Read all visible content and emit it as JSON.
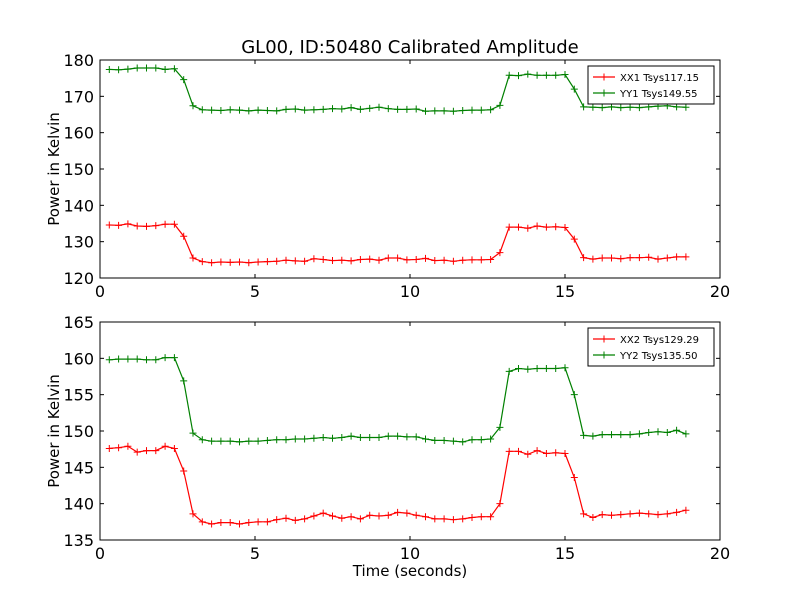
{
  "title": "GL00, ID:50480 Calibrated Amplitude",
  "colors": {
    "xx": "#ff0000",
    "yy": "#008000",
    "axis": "#000000"
  },
  "chart_data": [
    {
      "type": "line",
      "xlabel": "",
      "ylabel": "Power in Kelvin",
      "xlim": [
        0,
        20
      ],
      "ylim": [
        120,
        180
      ],
      "xticks": [
        0,
        5,
        10,
        15,
        20
      ],
      "yticks": [
        120,
        130,
        140,
        150,
        160,
        170,
        180
      ],
      "grid": false,
      "legend_position": "top-right",
      "x": [
        0.3,
        0.6,
        0.9,
        1.2,
        1.5,
        1.8,
        2.1,
        2.4,
        2.7,
        3.0,
        3.3,
        3.6,
        3.9,
        4.2,
        4.5,
        4.8,
        5.1,
        5.4,
        5.7,
        6.0,
        6.3,
        6.6,
        6.9,
        7.2,
        7.5,
        7.8,
        8.1,
        8.4,
        8.7,
        9.0,
        9.3,
        9.6,
        9.9,
        10.2,
        10.5,
        10.8,
        11.1,
        11.4,
        11.7,
        12.0,
        12.3,
        12.6,
        12.9,
        13.2,
        13.5,
        13.8,
        14.1,
        14.4,
        14.7,
        15.0,
        15.3,
        15.6,
        15.9,
        16.2,
        16.5,
        16.8,
        17.1,
        17.4,
        17.7,
        18.0,
        18.3,
        18.6,
        18.9
      ],
      "series": [
        {
          "name": "XX1 Tsys117.15",
          "color": "#ff0000",
          "values": [
            134.6,
            134.5,
            134.9,
            134.3,
            134.2,
            134.4,
            134.8,
            134.8,
            131.5,
            125.5,
            124.5,
            124.2,
            124.4,
            124.3,
            124.4,
            124.2,
            124.4,
            124.5,
            124.6,
            124.9,
            124.7,
            124.6,
            125.3,
            125.1,
            124.8,
            124.9,
            124.7,
            125.1,
            125.2,
            124.9,
            125.5,
            125.5,
            125.0,
            125.1,
            125.4,
            124.8,
            124.9,
            124.6,
            124.9,
            125.0,
            125.0,
            125.1,
            127.0,
            134.0,
            134.0,
            133.7,
            134.3,
            134.0,
            134.1,
            133.9,
            130.7,
            125.6,
            125.2,
            125.5,
            125.5,
            125.3,
            125.6,
            125.6,
            125.7,
            125.2,
            125.5,
            125.8,
            125.8
          ]
        },
        {
          "name": "YY1 Tsys149.55",
          "color": "#008000",
          "values": [
            177.4,
            177.3,
            177.5,
            177.8,
            177.8,
            177.8,
            177.4,
            177.6,
            174.6,
            167.4,
            166.3,
            166.2,
            166.1,
            166.3,
            166.2,
            166.0,
            166.2,
            166.1,
            166.0,
            166.4,
            166.5,
            166.2,
            166.3,
            166.4,
            166.6,
            166.5,
            166.9,
            166.4,
            166.7,
            167.0,
            166.6,
            166.4,
            166.4,
            166.5,
            165.9,
            166.0,
            166.0,
            165.9,
            166.1,
            166.2,
            166.2,
            166.3,
            167.5,
            175.8,
            175.7,
            176.1,
            175.8,
            175.8,
            175.8,
            176.0,
            172.0,
            167.1,
            167.0,
            166.9,
            167.1,
            166.9,
            167.0,
            166.9,
            167.1,
            167.3,
            167.4,
            167.1,
            167.0
          ]
        }
      ]
    },
    {
      "type": "line",
      "xlabel": "Time (seconds)",
      "ylabel": "Power in Kelvin",
      "xlim": [
        0,
        20
      ],
      "ylim": [
        135,
        165
      ],
      "xticks": [
        0,
        5,
        10,
        15,
        20
      ],
      "yticks": [
        135,
        140,
        145,
        150,
        155,
        160,
        165
      ],
      "grid": false,
      "legend_position": "top-right",
      "x": [
        0.3,
        0.6,
        0.9,
        1.2,
        1.5,
        1.8,
        2.1,
        2.4,
        2.7,
        3.0,
        3.3,
        3.6,
        3.9,
        4.2,
        4.5,
        4.8,
        5.1,
        5.4,
        5.7,
        6.0,
        6.3,
        6.6,
        6.9,
        7.2,
        7.5,
        7.8,
        8.1,
        8.4,
        8.7,
        9.0,
        9.3,
        9.6,
        9.9,
        10.2,
        10.5,
        10.8,
        11.1,
        11.4,
        11.7,
        12.0,
        12.3,
        12.6,
        12.9,
        13.2,
        13.5,
        13.8,
        14.1,
        14.4,
        14.7,
        15.0,
        15.3,
        15.6,
        15.9,
        16.2,
        16.5,
        16.8,
        17.1,
        17.4,
        17.7,
        18.0,
        18.3,
        18.6,
        18.9
      ],
      "series": [
        {
          "name": "XX2 Tsys129.29",
          "color": "#ff0000",
          "values": [
            147.6,
            147.7,
            147.9,
            147.1,
            147.3,
            147.3,
            147.9,
            147.6,
            144.5,
            138.6,
            137.5,
            137.2,
            137.4,
            137.4,
            137.2,
            137.4,
            137.5,
            137.5,
            137.8,
            138.0,
            137.7,
            137.9,
            138.3,
            138.7,
            138.3,
            138.0,
            138.2,
            137.9,
            138.4,
            138.3,
            138.4,
            138.8,
            138.7,
            138.4,
            138.2,
            137.9,
            137.9,
            137.8,
            137.9,
            138.1,
            138.2,
            138.2,
            140.0,
            147.2,
            147.2,
            146.8,
            147.3,
            146.9,
            147.0,
            146.9,
            143.6,
            138.6,
            138.1,
            138.5,
            138.4,
            138.5,
            138.6,
            138.7,
            138.6,
            138.5,
            138.6,
            138.8,
            139.1
          ]
        },
        {
          "name": "YY2 Tsys135.50",
          "color": "#008000",
          "values": [
            159.8,
            159.9,
            159.9,
            159.9,
            159.8,
            159.8,
            160.1,
            160.1,
            156.9,
            149.7,
            148.8,
            148.6,
            148.6,
            148.6,
            148.5,
            148.6,
            148.6,
            148.7,
            148.8,
            148.8,
            148.9,
            148.9,
            149.0,
            149.1,
            149.0,
            149.1,
            149.3,
            149.1,
            149.1,
            149.1,
            149.3,
            149.3,
            149.2,
            149.2,
            148.9,
            148.7,
            148.7,
            148.6,
            148.5,
            148.8,
            148.8,
            148.9,
            150.5,
            158.2,
            158.6,
            158.5,
            158.6,
            158.6,
            158.6,
            158.7,
            155.0,
            149.4,
            149.3,
            149.5,
            149.5,
            149.5,
            149.5,
            149.6,
            149.8,
            149.9,
            149.8,
            150.1,
            149.6
          ]
        }
      ]
    }
  ]
}
